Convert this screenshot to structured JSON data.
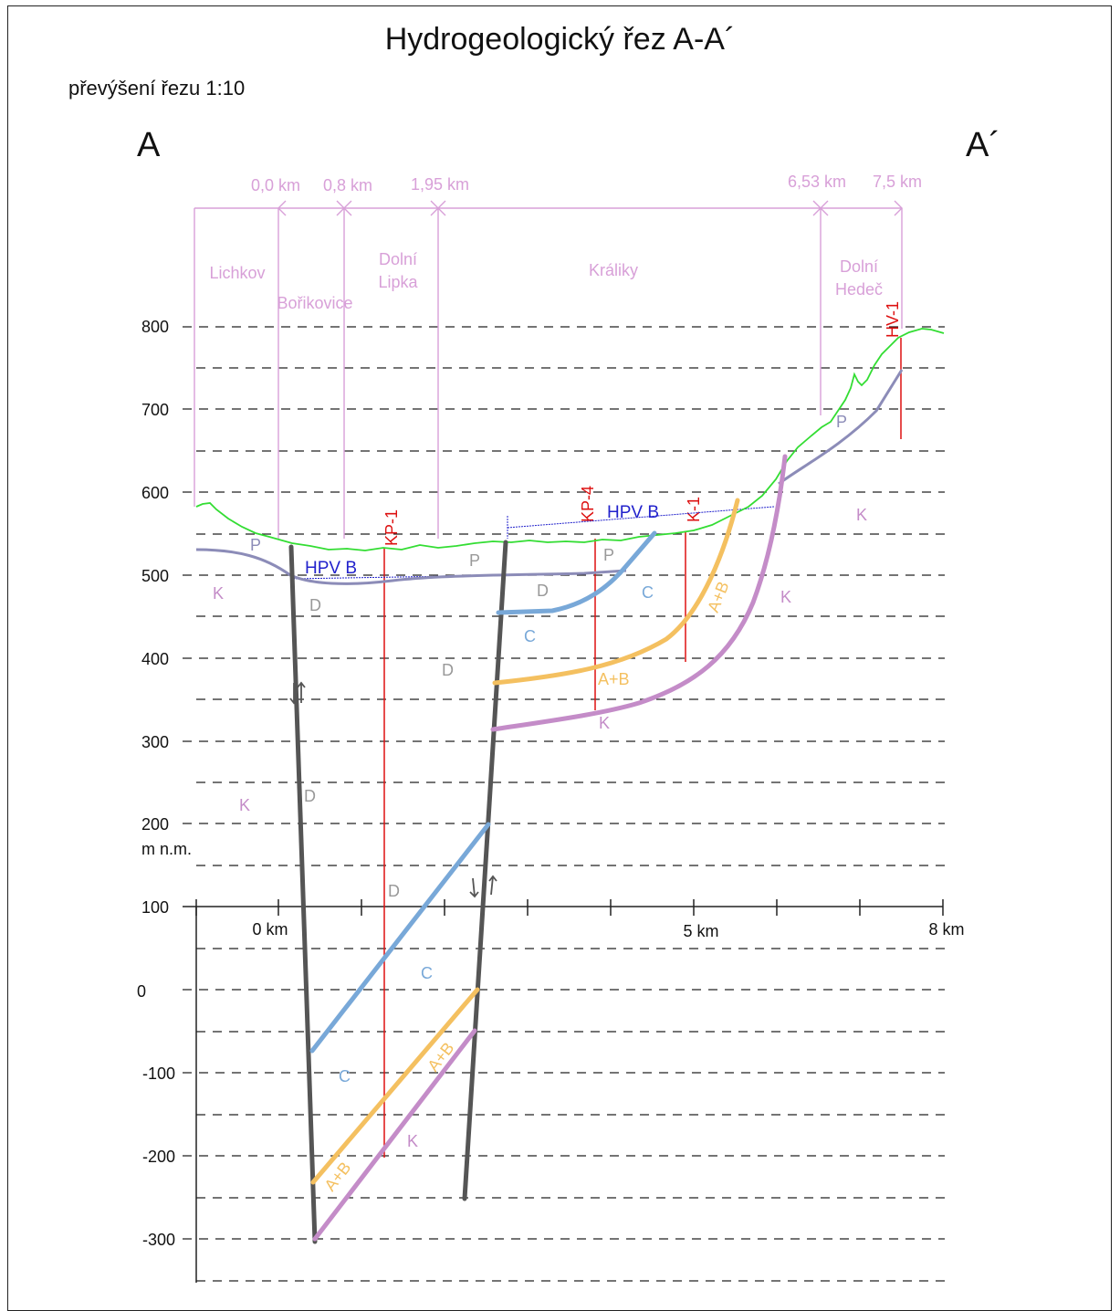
{
  "title": "Hydrogeologický řez A-A´",
  "subtitle": "převýšení řezu 1:10",
  "section_ends": {
    "start": "A",
    "end": "A´"
  },
  "distance_marks": [
    "0,0 km",
    "0,8 km",
    "1,95 km",
    "6,53 km",
    "7,5 km"
  ],
  "villages": [
    {
      "line1": "Lichkov",
      "line2": ""
    },
    {
      "line1": "Bořikovice",
      "line2": ""
    },
    {
      "line1": "Dolní",
      "line2": "Lipka"
    },
    {
      "line1": "Králiky",
      "line2": ""
    },
    {
      "line1": "Dolní",
      "line2": "Hedeč"
    }
  ],
  "y_axis": {
    "ticks": [
      "800",
      "700",
      "600",
      "500",
      "400",
      "300",
      "200",
      "100",
      "0",
      "-100",
      "-200",
      "-300"
    ],
    "unit": "m n.m."
  },
  "x_axis": {
    "ticks": [
      "0 km",
      "5 km",
      "8 km"
    ]
  },
  "boreholes": [
    "KP-1",
    "KP-4",
    "K-1",
    "HV-1"
  ],
  "water_table_label": "HPV B",
  "units": {
    "P": "P",
    "K": "K",
    "D": "D",
    "C": "C",
    "AB": "A+B"
  },
  "colors": {
    "terrain": "#33dd33",
    "base_P": "#8c8cb8",
    "fault": "#555555",
    "unit_C": "#78a8d8",
    "unit_AB": "#f4c060",
    "unit_K": "#c48cc8",
    "borehole": "#dd1111",
    "water_table": "#2222cc",
    "annotation": "#d8a0d8",
    "unit_label_grey": "#999999"
  }
}
